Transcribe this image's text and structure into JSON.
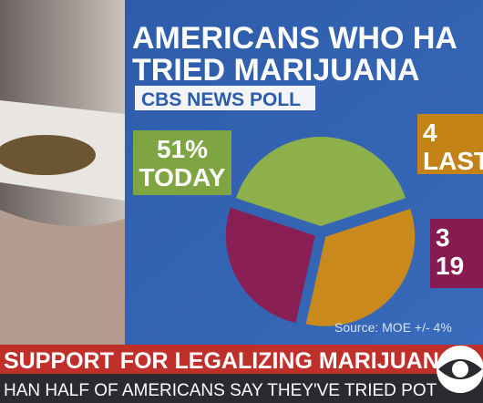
{
  "chart_data": {
    "type": "pie",
    "title": [
      "AMERICANS WHO HA",
      "TRIED MARIJUANA"
    ],
    "subtitle": "CBS NEWS POLL",
    "categories": [
      "TODAY",
      "LAST",
      "19"
    ],
    "values": [
      51,
      43,
      34
    ],
    "colors": [
      "#8db04a",
      "#c9891c",
      "#8a1f56"
    ],
    "annotations": [
      [
        "51%",
        "TODAY"
      ],
      [
        "4",
        "LAST"
      ],
      [
        "3",
        "19"
      ]
    ],
    "source": "Source: MOE +/- 4%"
  },
  "ticker": {
    "headline": "SUPPORT FOR LEGALIZING MARIJUANA",
    "subline": "HAN HALF OF AMERICANS SAY THEY'VE TRIED POT"
  }
}
